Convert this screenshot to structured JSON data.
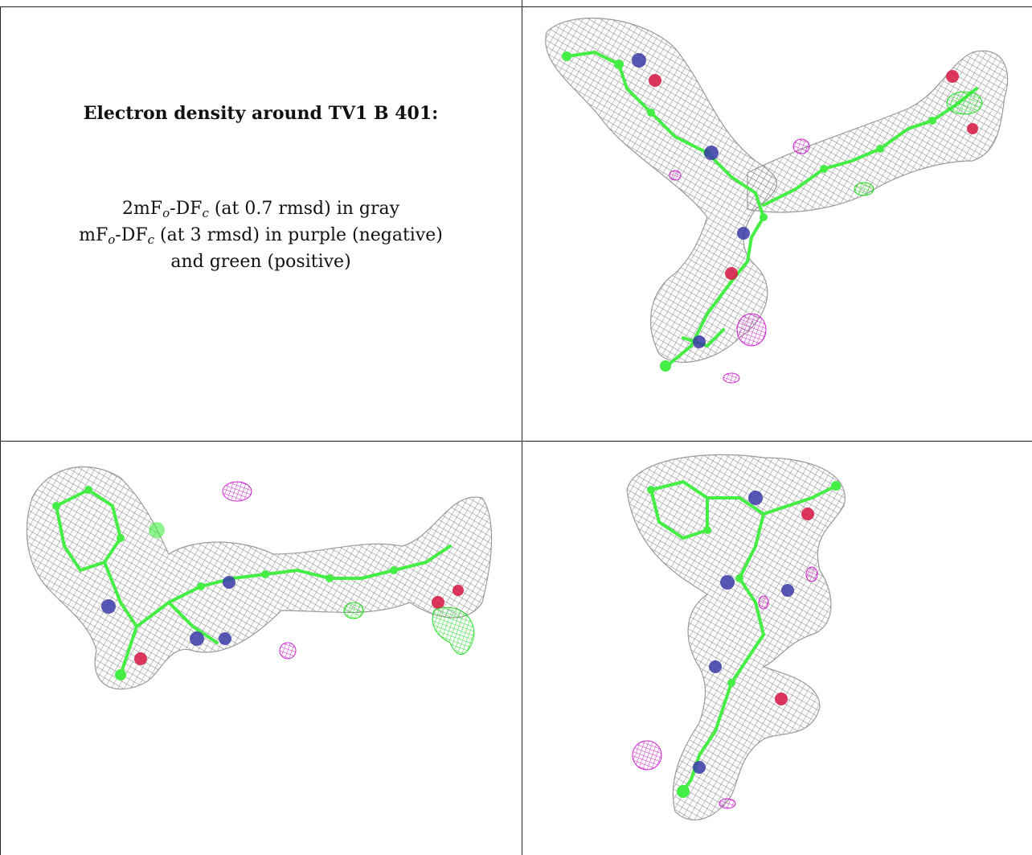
{
  "caption": {
    "title": "Electron density around TV1 B 401:",
    "line1_a": "2mF",
    "line1_sub1": "o",
    "line1_b": "-DF",
    "line1_sub2": "c",
    "line1_c": " (at 0.7 rmsd) in gray",
    "line2_a": "mF",
    "line2_sub1": "o",
    "line2_b": "-DF",
    "line2_sub2": "c",
    "line2_c": " (at 3 rmsd) in purple (negative)",
    "line3": "and green (positive)"
  },
  "colors": {
    "mesh_gray": "#8a8a8a",
    "carbon_green": "#44ee44",
    "nitrogen_blue": "#3a3aa8",
    "oxygen_red": "#d8204a",
    "negative_purple": "#cc22cc",
    "positive_green": "#22dd22"
  }
}
